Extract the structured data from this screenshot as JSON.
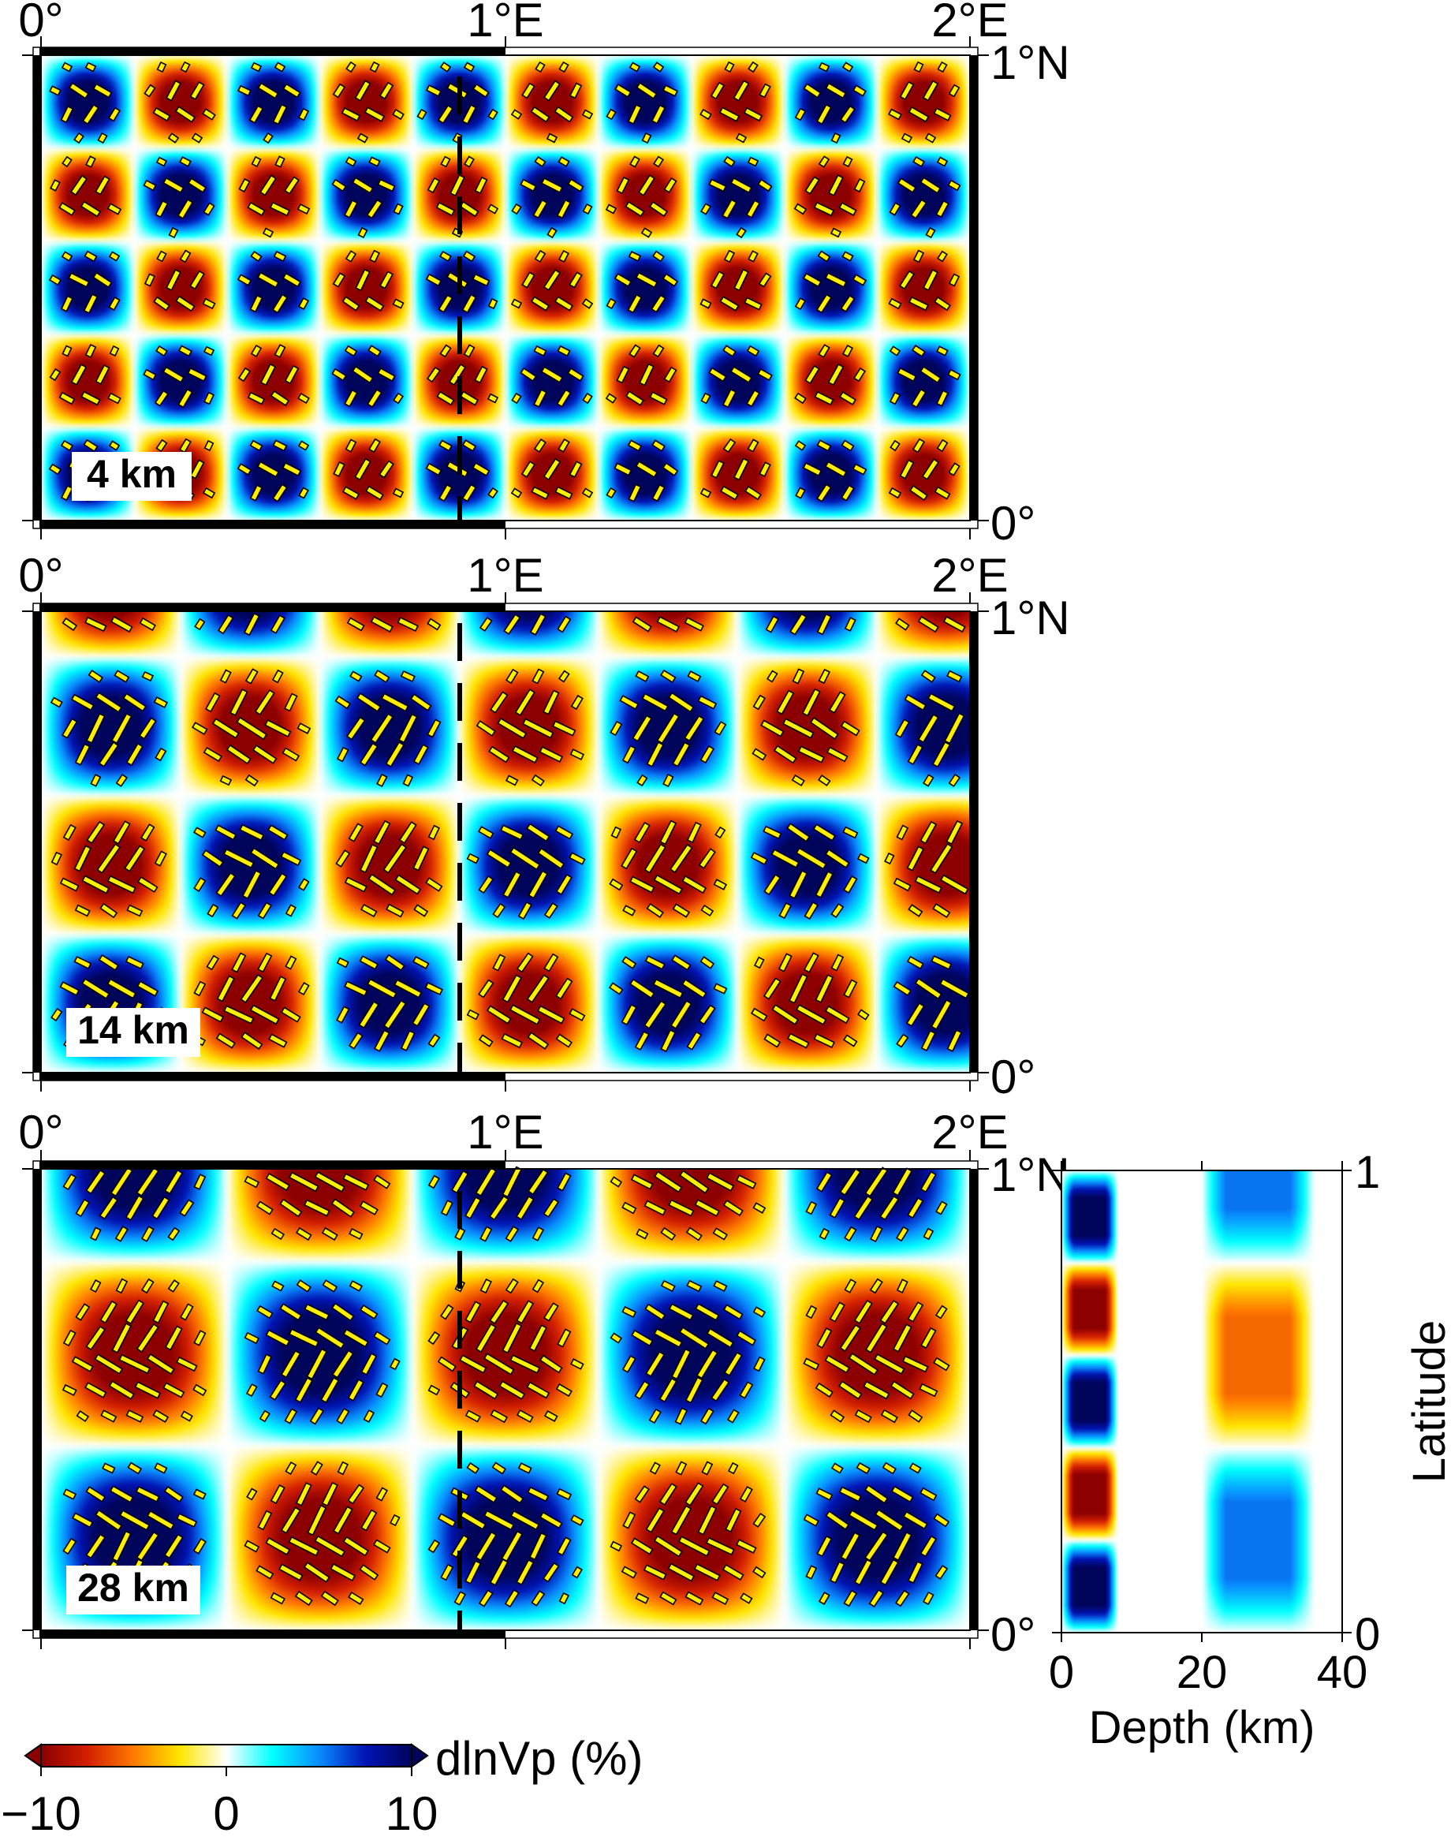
{
  "chart_data": [
    {
      "type": "heatmap",
      "panel": "map",
      "label": "4 km",
      "depth_km": 4,
      "xticks": [
        "0°",
        "1°E",
        "2°E"
      ],
      "yticks": [
        "0°",
        "1°N"
      ],
      "xlim": [
        0,
        2
      ],
      "ylim": [
        0,
        1
      ],
      "pattern": {
        "nx": 10,
        "ny": 5,
        "amplitude": 10
      },
      "bar_length_scale": 0.9,
      "profile_longitude": 0.9,
      "profile_style": "dashed"
    },
    {
      "type": "heatmap",
      "panel": "map",
      "label": "14 km",
      "depth_km": 14,
      "xticks": [
        "0°",
        "1°E",
        "2°E"
      ],
      "yticks": [
        "0°",
        "1°N"
      ],
      "xlim": [
        0,
        2
      ],
      "ylim": [
        0,
        1
      ],
      "pattern": {
        "nx": 6.67,
        "ny": 3.33,
        "amplitude": 10
      },
      "bar_length_scale": 1.0,
      "profile_longitude": 0.9,
      "profile_style": "dashed"
    },
    {
      "type": "heatmap",
      "panel": "map",
      "label": "28 km",
      "depth_km": 28,
      "xticks": [
        "0°",
        "1°E",
        "2°E"
      ],
      "yticks": [
        "0°",
        "1°N"
      ],
      "xlim": [
        0,
        2
      ],
      "ylim": [
        0,
        1
      ],
      "pattern": {
        "nx": 5,
        "ny": 2.5,
        "amplitude": 10
      },
      "bar_length_scale": 1.0,
      "profile_longitude": 0.9,
      "profile_style": "dashed"
    },
    {
      "type": "heatmap",
      "panel": "cross-section",
      "xlabel": "Depth (km)",
      "ylabel": "Latitude",
      "xticks": [
        "0",
        "20",
        "40"
      ],
      "yticks": [
        "0",
        "1"
      ],
      "xlim": [
        0,
        40
      ],
      "ylim": [
        0,
        1
      ],
      "layers": [
        {
          "depth_range": [
            0,
            8
          ],
          "cells_per_degree": 5,
          "amplitude": 10
        },
        {
          "depth_range": [
            20,
            36
          ],
          "cells_per_degree": 2.5,
          "amplitude": 5.5
        }
      ]
    }
  ],
  "colorbar": {
    "label": "dlnVp (%)",
    "min": -10,
    "max": 10,
    "ticks": [
      "−10",
      "0",
      "10"
    ],
    "colors": [
      "#8c0000",
      "#d31f00",
      "#ff7a00",
      "#ffe600",
      "#ffffff",
      "#00ffff",
      "#0a8cff",
      "#0014b4",
      "#00045a"
    ]
  }
}
